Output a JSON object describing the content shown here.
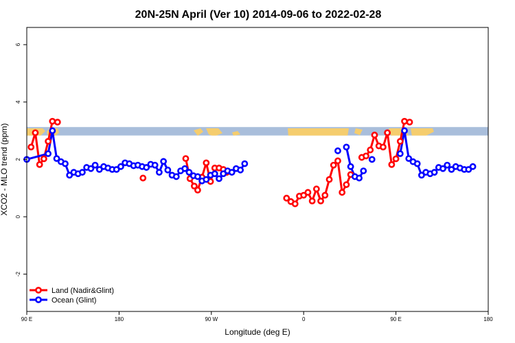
{
  "chart_data": {
    "type": "line",
    "title": "20N-25N April (Ver 10)   2014-09-06 to 2022-02-28",
    "xlabel": "Longitude (deg E)",
    "ylabel": "XCO2 - MLO trend (ppm)",
    "xlim": [
      -90,
      180
    ],
    "ylim": [
      -3.3,
      6.6
    ],
    "x_ticks": [
      {
        "value": -90,
        "label": "90 E"
      },
      {
        "value": -36,
        "label": "180"
      },
      {
        "value": 18,
        "label": "90 W"
      },
      {
        "value": 72,
        "label": "0"
      },
      {
        "value": 126,
        "label": "90 E"
      },
      {
        "value": 180,
        "label": "180"
      }
    ],
    "y_ticks": [
      {
        "value": -2,
        "label": "-2"
      },
      {
        "value": 0,
        "label": "0"
      },
      {
        "value": 2,
        "label": "2"
      },
      {
        "value": 4,
        "label": "4"
      },
      {
        "value": 6,
        "label": "6"
      }
    ],
    "legend_position": "bottom-left",
    "map_band": {
      "y_from": 2.83,
      "y_to": 3.13,
      "ocean_color": "#a9bedb",
      "land_color": "#f5cd6e"
    },
    "series": [
      {
        "name": "Land (Nadir&Glint)",
        "color": "#ff0000",
        "segments": [
          [
            [
              -87.5,
              2.43
            ],
            [
              -85,
              2.93
            ],
            [
              -82.5,
              1.82
            ],
            [
              -80,
              2.02
            ],
            [
              -77.5,
              2.63
            ],
            [
              -75,
              3.33
            ],
            [
              -72,
              3.3
            ]
          ],
          [
            [
              -22,
              1.35
            ]
          ],
          [
            [
              3,
              2.03
            ],
            [
              5.5,
              1.33
            ],
            [
              8,
              1.07
            ],
            [
              10,
              0.93
            ],
            [
              12.5,
              1.38
            ],
            [
              15,
              1.88
            ],
            [
              17.5,
              1.23
            ],
            [
              20,
              1.7
            ],
            [
              22.5,
              1.7
            ],
            [
              25,
              1.65
            ],
            [
              27,
              1.55
            ]
          ],
          [
            [
              62,
              0.65
            ],
            [
              64.5,
              0.53
            ],
            [
              67,
              0.45
            ],
            [
              69.5,
              0.72
            ],
            [
              72,
              0.75
            ],
            [
              74.5,
              0.85
            ],
            [
              77,
              0.55
            ],
            [
              79.5,
              0.97
            ],
            [
              82,
              0.55
            ],
            [
              84.5,
              0.75
            ],
            [
              87,
              1.3
            ],
            [
              89.5,
              1.8
            ],
            [
              92,
              1.95
            ],
            [
              94.5,
              0.85
            ],
            [
              97,
              1.12
            ],
            [
              99.5,
              1.47
            ]
          ],
          [
            [
              106,
              2.07
            ],
            [
              108.5,
              2.12
            ],
            [
              111,
              2.33
            ],
            [
              113.5,
              2.85
            ],
            [
              116,
              2.47
            ],
            [
              118.5,
              2.43
            ],
            [
              121,
              2.93
            ],
            [
              123.5,
              1.82
            ],
            [
              126,
              2.02
            ],
            [
              128.5,
              2.63
            ],
            [
              131,
              3.33
            ],
            [
              134,
              3.3
            ]
          ]
        ]
      },
      {
        "name": "Ocean (Glint)",
        "color": "#0000ff",
        "segments": [
          [
            [
              -90,
              2.0
            ],
            [
              -77.5,
              2.2
            ],
            [
              -75,
              3.0
            ],
            [
              -72.5,
              2.03
            ],
            [
              -70,
              1.92
            ],
            [
              -67.5,
              1.85
            ],
            [
              -65,
              1.45
            ],
            [
              -62.5,
              1.55
            ],
            [
              -60,
              1.5
            ],
            [
              -57.5,
              1.55
            ],
            [
              -55,
              1.72
            ],
            [
              -52.5,
              1.68
            ],
            [
              -50,
              1.8
            ],
            [
              -47.5,
              1.65
            ],
            [
              -45,
              1.75
            ],
            [
              -42.5,
              1.7
            ],
            [
              -40,
              1.65
            ],
            [
              -37.5,
              1.65
            ],
            [
              -35,
              1.75
            ],
            [
              -32.5,
              1.88
            ],
            [
              -30,
              1.85
            ],
            [
              -27.5,
              1.78
            ],
            [
              -25,
              1.8
            ],
            [
              -22.5,
              1.75
            ],
            [
              -20,
              1.72
            ],
            [
              -17.5,
              1.83
            ],
            [
              -15,
              1.8
            ],
            [
              -12.5,
              1.55
            ],
            [
              -10,
              1.93
            ],
            [
              -7.5,
              1.63
            ],
            [
              -5,
              1.45
            ],
            [
              -2.5,
              1.4
            ],
            [
              0,
              1.6
            ],
            [
              2.5,
              1.68
            ],
            [
              5,
              1.55
            ],
            [
              7.5,
              1.43
            ],
            [
              10,
              1.4
            ],
            [
              12.5,
              1.25
            ],
            [
              15,
              1.3
            ],
            [
              17.5,
              1.45
            ],
            [
              20,
              1.5
            ],
            [
              22.5,
              1.33
            ],
            [
              25,
              1.5
            ],
            [
              27.5,
              1.6
            ],
            [
              30,
              1.55
            ],
            [
              32.5,
              1.68
            ],
            [
              35,
              1.63
            ],
            [
              37.5,
              1.85
            ]
          ],
          [
            [
              92,
              2.3
            ]
          ],
          [
            [
              97,
              2.43
            ],
            [
              99.5,
              1.75
            ],
            [
              102,
              1.4
            ],
            [
              104.5,
              1.35
            ],
            [
              107,
              1.6
            ]
          ],
          [
            [
              112,
              2.0
            ]
          ],
          [
            [
              128.5,
              2.2
            ],
            [
              131,
              3.0
            ],
            [
              133.5,
              2.03
            ],
            [
              136,
              1.92
            ],
            [
              138.5,
              1.85
            ],
            [
              141,
              1.45
            ],
            [
              143.5,
              1.55
            ],
            [
              146,
              1.5
            ],
            [
              148.5,
              1.55
            ],
            [
              151,
              1.72
            ],
            [
              153.5,
              1.68
            ],
            [
              156,
              1.8
            ],
            [
              158.5,
              1.65
            ],
            [
              161,
              1.75
            ],
            [
              163.5,
              1.7
            ],
            [
              166,
              1.65
            ],
            [
              168.5,
              1.65
            ],
            [
              171,
              1.75
            ]
          ]
        ]
      }
    ]
  }
}
